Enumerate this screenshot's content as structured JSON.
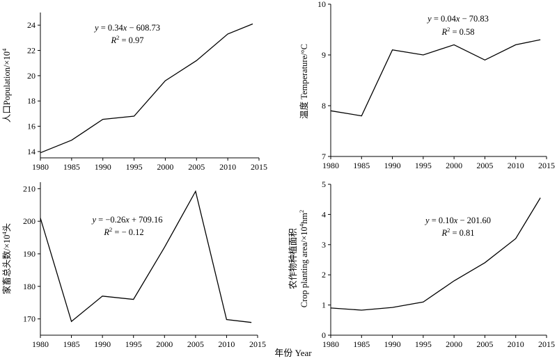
{
  "figure": {
    "xlabel": "年份 Year"
  },
  "chart_data": [
    {
      "type": "line",
      "ylabel_parts": [
        "人口Population/×10",
        "4"
      ],
      "x": [
        1980,
        1985,
        1990,
        1995,
        2000,
        2005,
        2010,
        2014
      ],
      "values": [
        13.9,
        14.9,
        16.55,
        16.8,
        19.6,
        21.2,
        23.3,
        24.1
      ],
      "xlim": [
        1980,
        2015
      ],
      "ylim": [
        13.5,
        25
      ],
      "xticks": [
        1980,
        1985,
        1990,
        1995,
        2000,
        2005,
        2010,
        2015
      ],
      "yticks": [
        14,
        16,
        18,
        20,
        22,
        24
      ],
      "eq": {
        "lhs": "y",
        "equals": " = 0.34",
        "var": "x",
        "rest": " − 608.73"
      },
      "r2": {
        "r": "R",
        "sup": "2",
        "rest": " = 0.97"
      }
    },
    {
      "type": "line",
      "ylabel_parts": [
        "温度 Temperature/°C"
      ],
      "x": [
        1980,
        1985,
        1990,
        1995,
        2000,
        2005,
        2010,
        2014
      ],
      "values": [
        7.9,
        7.8,
        9.1,
        9.0,
        9.2,
        8.9,
        9.2,
        9.3
      ],
      "xlim": [
        1980,
        2015
      ],
      "ylim": [
        7,
        10
      ],
      "xticks": [
        1980,
        1985,
        1990,
        1995,
        2000,
        2005,
        2010,
        2015
      ],
      "yticks": [
        7,
        8,
        9,
        10
      ],
      "eq": {
        "lhs": "y",
        "equals": " = 0.04",
        "var": "x",
        "rest": " − 70.83"
      },
      "r2": {
        "r": "R",
        "sup": "2",
        "rest": " = 0.58"
      }
    },
    {
      "type": "line",
      "ylabel_parts": [
        "家畜总头数/×10",
        "4",
        "头"
      ],
      "x": [
        1980,
        1985,
        1990,
        1995,
        2000,
        2005,
        2010,
        2014
      ],
      "values": [
        201,
        169.2,
        177,
        176,
        192,
        209.2,
        169.8,
        168.9
      ],
      "xlim": [
        1980,
        2015
      ],
      "ylim": [
        165,
        212
      ],
      "xticks": [
        1980,
        1985,
        1990,
        1995,
        2000,
        2005,
        2010,
        2015
      ],
      "yticks": [
        170,
        180,
        190,
        200,
        210
      ],
      "eq": {
        "lhs": "y",
        "equals": " = −0.26",
        "var": "x",
        "rest": " + 709.16"
      },
      "r2": {
        "r": "R",
        "sup": "2",
        "rest": " = −  0.12"
      }
    },
    {
      "type": "line",
      "ylabel_parts": [
        "农作物种植面积"
      ],
      "ylabel2_parts": [
        "Crop planting area/×10",
        "4",
        "hm",
        "2"
      ],
      "x": [
        1980,
        1985,
        1990,
        1995,
        2000,
        2005,
        2010,
        2014
      ],
      "values": [
        0.9,
        0.83,
        0.92,
        1.1,
        1.8,
        2.4,
        3.2,
        4.55
      ],
      "xlim": [
        1980,
        2015
      ],
      "ylim": [
        0,
        5
      ],
      "xticks": [
        1980,
        1985,
        1990,
        1995,
        2000,
        2005,
        2010,
        2015
      ],
      "yticks": [
        0,
        1,
        2,
        3,
        4,
        5
      ],
      "eq": {
        "lhs": "y",
        "equals": " = 0.10",
        "var": "x",
        "rest": " −  201.60"
      },
      "r2": {
        "r": "R",
        "sup": "2",
        "rest": " = 0.81"
      }
    }
  ]
}
